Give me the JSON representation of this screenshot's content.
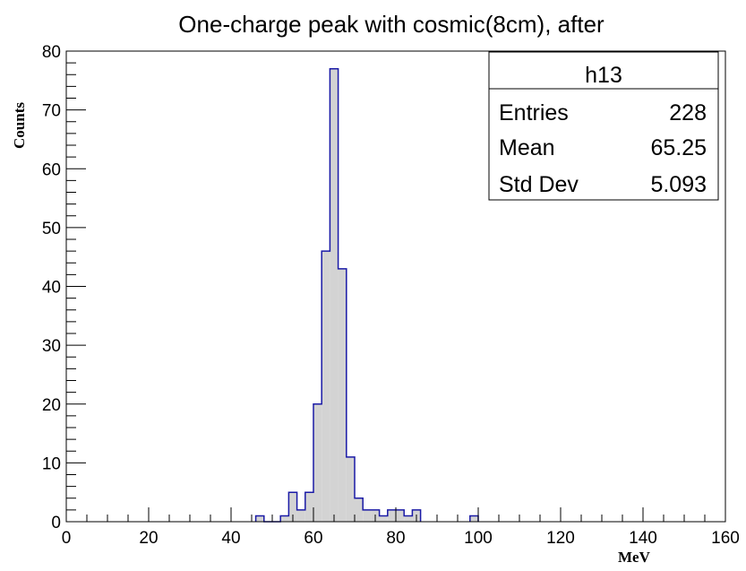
{
  "chart_data": {
    "type": "histogram",
    "title": "One-charge peak with cosmic(8cm), after",
    "xlabel": "MeV",
    "ylabel": "Counts",
    "xlim": [
      0,
      160
    ],
    "ylim": [
      0,
      80
    ],
    "bin_width": 2,
    "x_ticks": [
      0,
      20,
      40,
      60,
      80,
      100,
      120,
      140,
      160
    ],
    "y_ticks": [
      0,
      10,
      20,
      30,
      40,
      50,
      60,
      70,
      80
    ],
    "grid": false,
    "bins": [
      {
        "x": 46,
        "count": 1
      },
      {
        "x": 48,
        "count": 0
      },
      {
        "x": 50,
        "count": 0
      },
      {
        "x": 52,
        "count": 1
      },
      {
        "x": 54,
        "count": 5
      },
      {
        "x": 56,
        "count": 2
      },
      {
        "x": 58,
        "count": 5
      },
      {
        "x": 60,
        "count": 20
      },
      {
        "x": 62,
        "count": 46
      },
      {
        "x": 64,
        "count": 77
      },
      {
        "x": 66,
        "count": 43
      },
      {
        "x": 68,
        "count": 11
      },
      {
        "x": 70,
        "count": 4
      },
      {
        "x": 72,
        "count": 2
      },
      {
        "x": 74,
        "count": 2
      },
      {
        "x": 76,
        "count": 1
      },
      {
        "x": 78,
        "count": 2
      },
      {
        "x": 80,
        "count": 2
      },
      {
        "x": 82,
        "count": 1
      },
      {
        "x": 84,
        "count": 2
      },
      {
        "x": 98,
        "count": 1
      }
    ],
    "fill_color": "#d3d3d3",
    "line_color": "#1a1aa6",
    "stats_box": {
      "placement": "top-right",
      "name": "h13",
      "rows": [
        {
          "label": "Entries",
          "value": "228"
        },
        {
          "label": "Mean",
          "value": "65.25"
        },
        {
          "label": "Std Dev",
          "value": "5.093"
        }
      ]
    }
  }
}
